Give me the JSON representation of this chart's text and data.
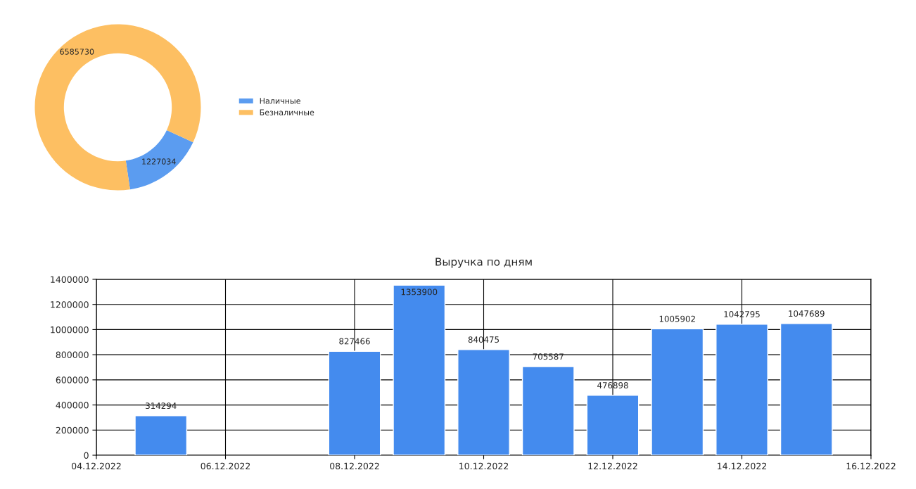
{
  "chart_data": [
    {
      "type": "donut",
      "categories": [
        "Наличные",
        "Безналичные"
      ],
      "values": [
        1227034,
        6585730
      ],
      "colors": [
        "#5b9cf0",
        "#fdbf62"
      ],
      "data_labels": true,
      "legend": "right"
    },
    {
      "type": "bar",
      "title": "Выручка по дням",
      "x": [
        "2022-12-05",
        "2022-12-08",
        "2022-12-09",
        "2022-12-10",
        "2022-12-11",
        "2022-12-12",
        "2022-12-13",
        "2022-12-14",
        "2022-12-15"
      ],
      "values": [
        314294,
        827466,
        1353900,
        840475,
        705587,
        476898,
        1005902,
        1042795,
        1047689
      ],
      "color": "#448bee",
      "data_labels": true,
      "grid": true,
      "xlim": [
        "2022-12-04",
        "2022-12-16"
      ],
      "xticks": [
        {
          "value": "2022-12-04",
          "label": "04.12.2022"
        },
        {
          "value": "2022-12-06",
          "label": "06.12.2022"
        },
        {
          "value": "2022-12-08",
          "label": "08.12.2022"
        },
        {
          "value": "2022-12-10",
          "label": "10.12.2022"
        },
        {
          "value": "2022-12-12",
          "label": "12.12.2022"
        },
        {
          "value": "2022-12-14",
          "label": "14.12.2022"
        },
        {
          "value": "2022-12-16",
          "label": "16.12.2022"
        }
      ],
      "ylim": [
        0,
        1400000
      ],
      "yticks": [
        0,
        200000,
        400000,
        600000,
        800000,
        1000000,
        1200000,
        1400000
      ]
    }
  ]
}
